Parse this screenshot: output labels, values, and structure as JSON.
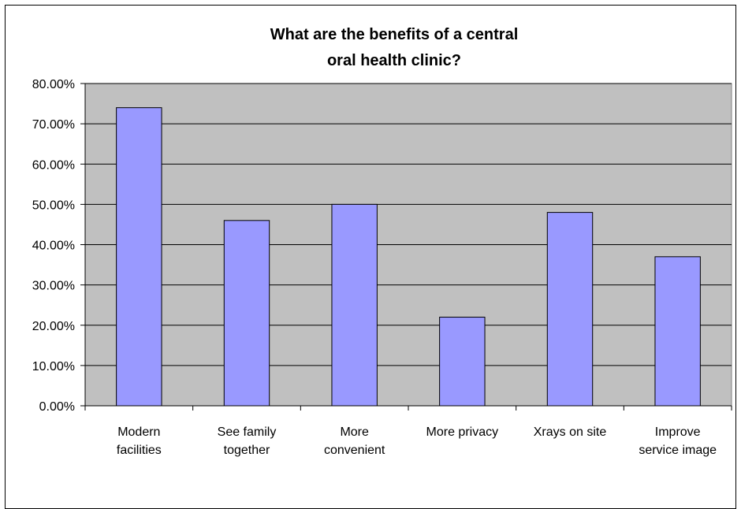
{
  "chart_data": {
    "type": "bar",
    "title": [
      "What are the benefits of a central",
      "oral health clinic?"
    ],
    "categories": [
      [
        "Modern",
        "facilities"
      ],
      [
        "See family",
        "together"
      ],
      [
        "More",
        "convenient"
      ],
      [
        "More privacy"
      ],
      [
        "Xrays on site"
      ],
      [
        "Improve",
        "service image"
      ]
    ],
    "values": [
      0.74,
      0.46,
      0.5,
      0.22,
      0.48,
      0.37
    ],
    "ylim": [
      0,
      0.8
    ],
    "yticks": [
      0,
      0.1,
      0.2,
      0.3,
      0.4,
      0.5,
      0.6,
      0.7,
      0.8
    ],
    "ytick_labels": [
      "0.00%",
      "10.00%",
      "20.00%",
      "30.00%",
      "40.00%",
      "50.00%",
      "60.00%",
      "70.00%",
      "80.00%"
    ],
    "grid": true,
    "legend": "none",
    "xlabel": "",
    "ylabel": "",
    "colors": {
      "plot_background": "#c0c0c0",
      "bar_fill": "#9999ff",
      "bar_stroke": "#000000",
      "gridline": "#000000"
    }
  }
}
